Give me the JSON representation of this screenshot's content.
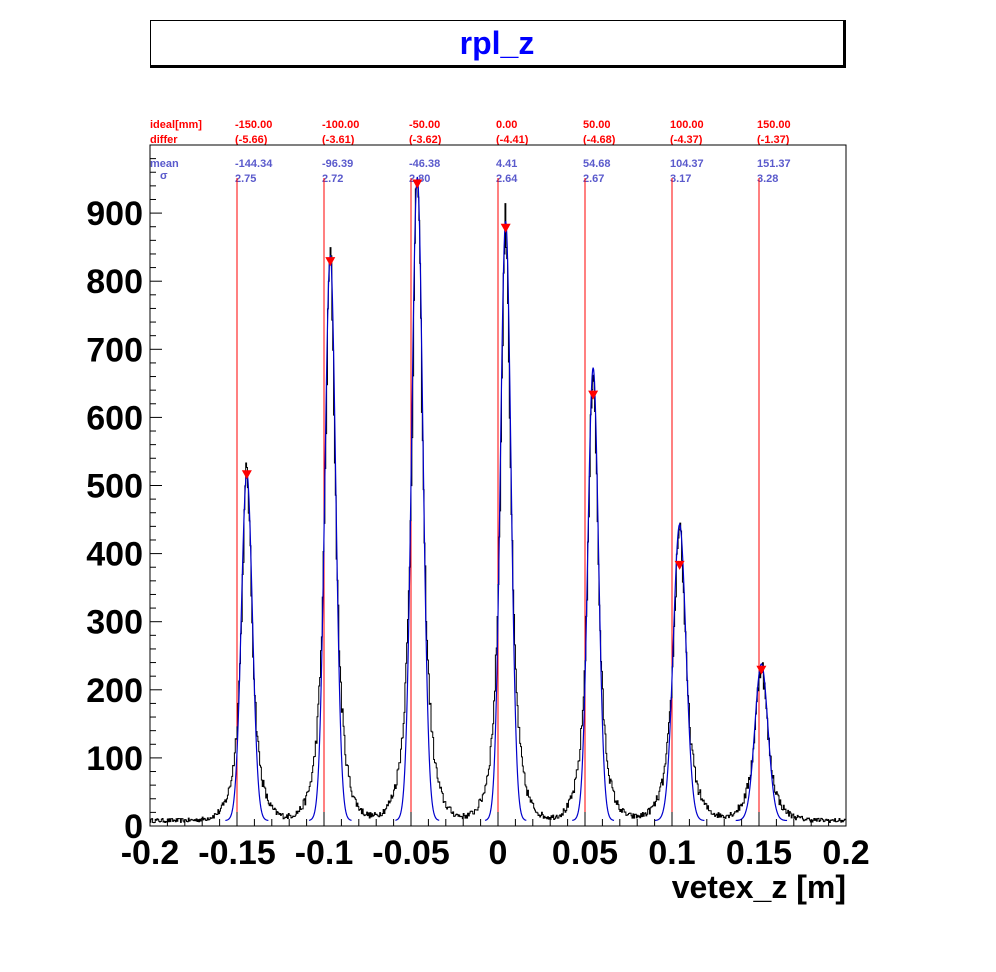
{
  "title": "rpl_z",
  "annotations": {
    "row_labels": {
      "ideal": "ideal[mm]",
      "differ": "differ",
      "mean": "mean",
      "sigma": "σ"
    },
    "columns": [
      {
        "ideal": "-150.00",
        "differ": "(-5.66)",
        "mean": "-144.34",
        "sigma": "2.75"
      },
      {
        "ideal": "-100.00",
        "differ": "(-3.61)",
        "mean": "-96.39",
        "sigma": "2.72"
      },
      {
        "ideal": "-50.00",
        "differ": "(-3.62)",
        "mean": "-46.38",
        "sigma": "2.80"
      },
      {
        "ideal": "0.00",
        "differ": "(-4.41)",
        "mean": "4.41",
        "sigma": "2.64"
      },
      {
        "ideal": "50.00",
        "differ": "(-4.68)",
        "mean": "54.68",
        "sigma": "2.67"
      },
      {
        "ideal": "100.00",
        "differ": "(-4.37)",
        "mean": "104.37",
        "sigma": "3.17"
      },
      {
        "ideal": "150.00",
        "differ": "(-1.37)",
        "mean": "151.37",
        "sigma": "3.28"
      }
    ]
  },
  "colors": {
    "title": "#0000ff",
    "histogram": "#000000",
    "fit": "#0000cc",
    "ideal_lines": "#ff0000",
    "markers": "#ff0000",
    "annotation_red": "#ff0000",
    "annotation_blue": "#5a5acc"
  },
  "chart_data": {
    "type": "line",
    "title": "rpl_z",
    "xlabel": "vetex_z [m]",
    "ylabel": "",
    "xlim": [
      -0.2,
      0.2
    ],
    "ylim": [
      0,
      1000
    ],
    "x_ticks": [
      "-0.2",
      "-0.15",
      "-0.1",
      "-0.05",
      "0",
      "0.05",
      "0.1",
      "0.15",
      "0.2"
    ],
    "y_ticks": [
      "0",
      "100",
      "200",
      "300",
      "400",
      "500",
      "600",
      "700",
      "800",
      "900"
    ],
    "ideal_positions_m": [
      -0.15,
      -0.1,
      -0.05,
      0.0,
      0.05,
      0.1,
      0.15
    ],
    "peaks": [
      {
        "mean_m": -0.14434,
        "sigma_m": 0.00275,
        "height": 510,
        "marker_height": 515
      },
      {
        "mean_m": -0.09639,
        "sigma_m": 0.00272,
        "height": 830,
        "marker_height": 828
      },
      {
        "mean_m": -0.04638,
        "sigma_m": 0.0028,
        "height": 945,
        "marker_height": 942
      },
      {
        "mean_m": 0.00441,
        "sigma_m": 0.00264,
        "height": 880,
        "marker_height": 877
      },
      {
        "mean_m": 0.05468,
        "sigma_m": 0.00267,
        "height": 665,
        "marker_height": 632
      },
      {
        "mean_m": 0.10437,
        "sigma_m": 0.00317,
        "height": 435,
        "marker_height": 382
      },
      {
        "mean_m": 0.15137,
        "sigma_m": 0.00328,
        "height": 230,
        "marker_height": 228
      }
    ],
    "background_level": 8,
    "grid": false,
    "legend": "none"
  }
}
